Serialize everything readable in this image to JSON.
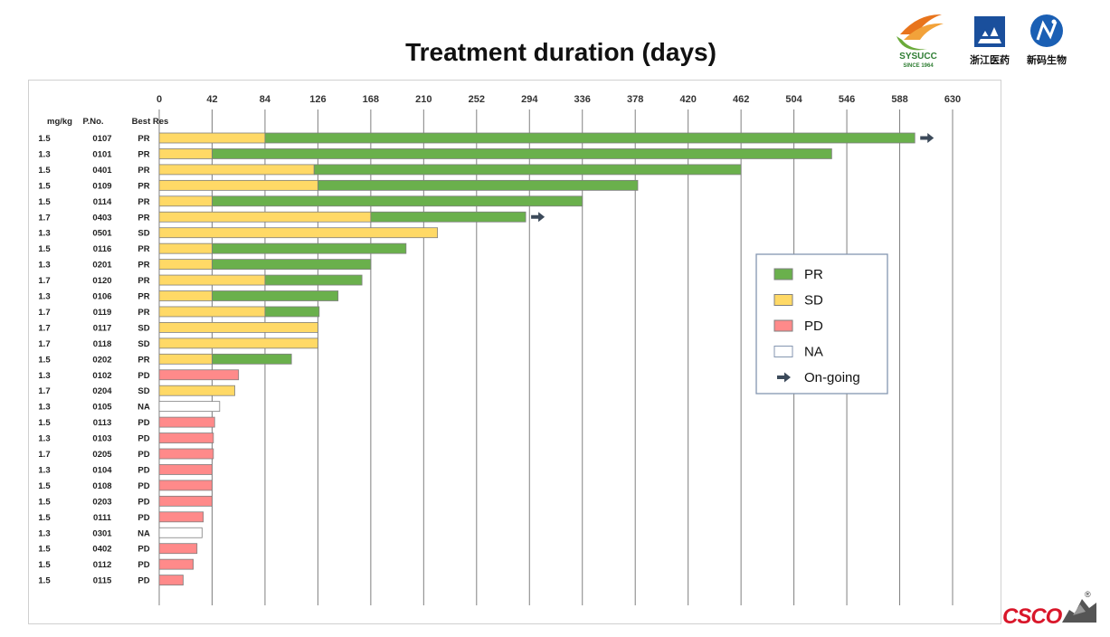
{
  "slide": {
    "title": "Treatment duration (days)"
  },
  "logos": {
    "sysucc": {
      "name": "SYSUCC",
      "caption": "SINCE 1964"
    },
    "zhejiang": {
      "caption": "浙江医药"
    },
    "xinma": {
      "caption": "新码生物"
    },
    "csco": {
      "name": "CSCO",
      "reg": "®"
    }
  },
  "colors": {
    "PR": "#6ab04c",
    "SD": "#ffd966",
    "PD": "#ff8a8a",
    "NA": "#ffffff",
    "border": "#7f7f7f",
    "grid": "#808080",
    "arrow": "#3c4a5a"
  },
  "chart_data": {
    "type": "bar",
    "title": "Treatment duration (days)",
    "xlim": [
      0,
      630
    ],
    "xticks": [
      0,
      42,
      84,
      126,
      168,
      210,
      252,
      294,
      336,
      378,
      420,
      462,
      504,
      546,
      588,
      630
    ],
    "column_headers": [
      "mg/kg",
      "P.No.",
      "Best Res"
    ],
    "legend": {
      "placement": "center-right",
      "entries": [
        {
          "label": "PR",
          "key": "PR"
        },
        {
          "label": "SD",
          "key": "SD"
        },
        {
          "label": "PD",
          "key": "PD"
        },
        {
          "label": "NA",
          "key": "NA"
        },
        {
          "label": "On-going",
          "key": "arrow"
        }
      ]
    },
    "patients": [
      {
        "dose": "1.5",
        "pno": "0107",
        "best": "PR",
        "segments": [
          {
            "status": "SD",
            "start": 0,
            "end": 84
          },
          {
            "status": "PR",
            "start": 84,
            "end": 600
          }
        ],
        "ongoing": true
      },
      {
        "dose": "1.3",
        "pno": "0101",
        "best": "PR",
        "segments": [
          {
            "status": "SD",
            "start": 0,
            "end": 42
          },
          {
            "status": "PR",
            "start": 42,
            "end": 534
          }
        ],
        "ongoing": false
      },
      {
        "dose": "1.5",
        "pno": "0401",
        "best": "PR",
        "segments": [
          {
            "status": "SD",
            "start": 0,
            "end": 123
          },
          {
            "status": "PR",
            "start": 123,
            "end": 462
          }
        ],
        "ongoing": false
      },
      {
        "dose": "1.5",
        "pno": "0109",
        "best": "PR",
        "segments": [
          {
            "status": "SD",
            "start": 0,
            "end": 126
          },
          {
            "status": "PR",
            "start": 126,
            "end": 380
          }
        ],
        "ongoing": false
      },
      {
        "dose": "1.5",
        "pno": "0114",
        "best": "PR",
        "segments": [
          {
            "status": "SD",
            "start": 0,
            "end": 42
          },
          {
            "status": "PR",
            "start": 42,
            "end": 336
          }
        ],
        "ongoing": false
      },
      {
        "dose": "1.7",
        "pno": "0403",
        "best": "PR",
        "segments": [
          {
            "status": "SD",
            "start": 0,
            "end": 168
          },
          {
            "status": "PR",
            "start": 168,
            "end": 291
          }
        ],
        "ongoing": true
      },
      {
        "dose": "1.3",
        "pno": "0501",
        "best": "SD",
        "segments": [
          {
            "status": "SD",
            "start": 0,
            "end": 221
          }
        ],
        "ongoing": false
      },
      {
        "dose": "1.5",
        "pno": "0116",
        "best": "PR",
        "segments": [
          {
            "status": "SD",
            "start": 0,
            "end": 42
          },
          {
            "status": "PR",
            "start": 42,
            "end": 196
          }
        ],
        "ongoing": false
      },
      {
        "dose": "1.3",
        "pno": "0201",
        "best": "PR",
        "segments": [
          {
            "status": "SD",
            "start": 0,
            "end": 42
          },
          {
            "status": "PR",
            "start": 42,
            "end": 168
          }
        ],
        "ongoing": false
      },
      {
        "dose": "1.7",
        "pno": "0120",
        "best": "PR",
        "segments": [
          {
            "status": "SD",
            "start": 0,
            "end": 84
          },
          {
            "status": "PR",
            "start": 84,
            "end": 161
          }
        ],
        "ongoing": false
      },
      {
        "dose": "1.3",
        "pno": "0106",
        "best": "PR",
        "segments": [
          {
            "status": "SD",
            "start": 0,
            "end": 42
          },
          {
            "status": "PR",
            "start": 42,
            "end": 142
          }
        ],
        "ongoing": false
      },
      {
        "dose": "1.7",
        "pno": "0119",
        "best": "PR",
        "segments": [
          {
            "status": "SD",
            "start": 0,
            "end": 84
          },
          {
            "status": "PR",
            "start": 84,
            "end": 127
          }
        ],
        "ongoing": false
      },
      {
        "dose": "1.7",
        "pno": "0117",
        "best": "SD",
        "segments": [
          {
            "status": "SD",
            "start": 0,
            "end": 126
          }
        ],
        "ongoing": false
      },
      {
        "dose": "1.7",
        "pno": "0118",
        "best": "SD",
        "segments": [
          {
            "status": "SD",
            "start": 0,
            "end": 126
          }
        ],
        "ongoing": false
      },
      {
        "dose": "1.5",
        "pno": "0202",
        "best": "PR",
        "segments": [
          {
            "status": "SD",
            "start": 0,
            "end": 42
          },
          {
            "status": "PR",
            "start": 42,
            "end": 105
          }
        ],
        "ongoing": false
      },
      {
        "dose": "1.3",
        "pno": "0102",
        "best": "PD",
        "segments": [
          {
            "status": "PD",
            "start": 0,
            "end": 63
          }
        ],
        "ongoing": false
      },
      {
        "dose": "1.7",
        "pno": "0204",
        "best": "SD",
        "segments": [
          {
            "status": "SD",
            "start": 0,
            "end": 60
          }
        ],
        "ongoing": false
      },
      {
        "dose": "1.3",
        "pno": "0105",
        "best": "NA",
        "segments": [
          {
            "status": "NA",
            "start": 0,
            "end": 48
          }
        ],
        "ongoing": false
      },
      {
        "dose": "1.5",
        "pno": "0113",
        "best": "PD",
        "segments": [
          {
            "status": "PD",
            "start": 0,
            "end": 44
          }
        ],
        "ongoing": false
      },
      {
        "dose": "1.3",
        "pno": "0103",
        "best": "PD",
        "segments": [
          {
            "status": "PD",
            "start": 0,
            "end": 43
          }
        ],
        "ongoing": false
      },
      {
        "dose": "1.7",
        "pno": "0205",
        "best": "PD",
        "segments": [
          {
            "status": "PD",
            "start": 0,
            "end": 43
          }
        ],
        "ongoing": false
      },
      {
        "dose": "1.3",
        "pno": "0104",
        "best": "PD",
        "segments": [
          {
            "status": "PD",
            "start": 0,
            "end": 42
          }
        ],
        "ongoing": false
      },
      {
        "dose": "1.5",
        "pno": "0108",
        "best": "PD",
        "segments": [
          {
            "status": "PD",
            "start": 0,
            "end": 42
          }
        ],
        "ongoing": false
      },
      {
        "dose": "1.5",
        "pno": "0203",
        "best": "PD",
        "segments": [
          {
            "status": "PD",
            "start": 0,
            "end": 42
          }
        ],
        "ongoing": false
      },
      {
        "dose": "1.5",
        "pno": "0111",
        "best": "PD",
        "segments": [
          {
            "status": "PD",
            "start": 0,
            "end": 35
          }
        ],
        "ongoing": false
      },
      {
        "dose": "1.3",
        "pno": "0301",
        "best": "NA",
        "segments": [
          {
            "status": "NA",
            "start": 0,
            "end": 34
          }
        ],
        "ongoing": false
      },
      {
        "dose": "1.5",
        "pno": "0402",
        "best": "PD",
        "segments": [
          {
            "status": "PD",
            "start": 0,
            "end": 30
          }
        ],
        "ongoing": false
      },
      {
        "dose": "1.5",
        "pno": "0112",
        "best": "PD",
        "segments": [
          {
            "status": "PD",
            "start": 0,
            "end": 27
          }
        ],
        "ongoing": false
      },
      {
        "dose": "1.5",
        "pno": "0115",
        "best": "PD",
        "segments": [
          {
            "status": "PD",
            "start": 0,
            "end": 19
          }
        ],
        "ongoing": false
      }
    ]
  }
}
